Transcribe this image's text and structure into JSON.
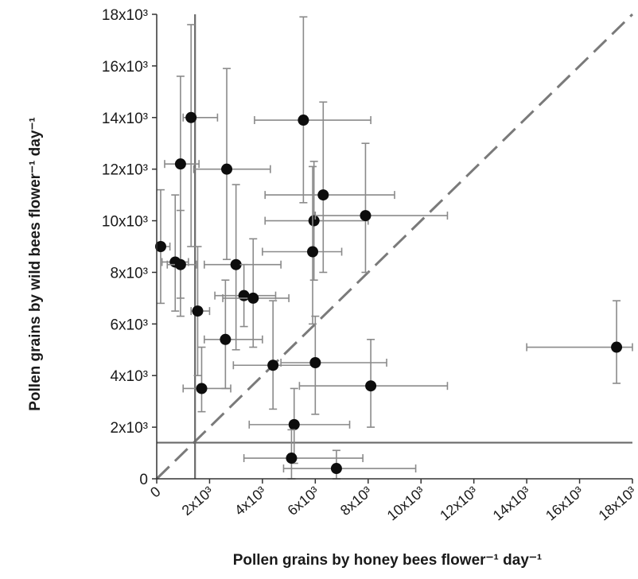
{
  "chart_data": {
    "type": "scatter",
    "xlabel": "Pollen grains by honey bees flower⁻¹ day⁻¹",
    "ylabel": "Pollen grains by wild bees flower⁻¹ day⁻¹",
    "xlim": [
      0,
      18000
    ],
    "ylim": [
      0,
      18000
    ],
    "x_ticks": [
      {
        "value": 0,
        "label": "0"
      },
      {
        "value": 2000,
        "label": "2x10³"
      },
      {
        "value": 4000,
        "label": "4x10³"
      },
      {
        "value": 6000,
        "label": "6x10³"
      },
      {
        "value": 8000,
        "label": "8x10³"
      },
      {
        "value": 10000,
        "label": "10x10³"
      },
      {
        "value": 12000,
        "label": "12x10³"
      },
      {
        "value": 14000,
        "label": "14x10³"
      },
      {
        "value": 16000,
        "label": "16x10³"
      },
      {
        "value": 18000,
        "label": "18x10³"
      }
    ],
    "y_ticks": [
      {
        "value": 0,
        "label": "0"
      },
      {
        "value": 2000,
        "label": "2x10³"
      },
      {
        "value": 4000,
        "label": "4x10³"
      },
      {
        "value": 6000,
        "label": "6x10³"
      },
      {
        "value": 8000,
        "label": "8x10³"
      },
      {
        "value": 10000,
        "label": "10x10³"
      },
      {
        "value": 12000,
        "label": "12x10³"
      },
      {
        "value": 14000,
        "label": "14x10³"
      },
      {
        "value": 16000,
        "label": "16x10³"
      },
      {
        "value": 18000,
        "label": "18x10³"
      }
    ],
    "grid": false,
    "reference_lines": {
      "identity_line": true,
      "vertical_x": 1450,
      "horizontal_y": 1400
    },
    "points": [
      {
        "x": 1300,
        "y": 14000,
        "x_err": [
          1000,
          2300
        ],
        "y_err": [
          9000,
          17600
        ]
      },
      {
        "x": 900,
        "y": 12200,
        "x_err": [
          300,
          1600
        ],
        "y_err": [
          7000,
          15600
        ]
      },
      {
        "x": 150,
        "y": 9000,
        "x_err": [
          0,
          500
        ],
        "y_err": [
          6800,
          11200
        ]
      },
      {
        "x": 700,
        "y": 8400,
        "x_err": [
          200,
          1200
        ],
        "y_err": [
          6500,
          11000
        ]
      },
      {
        "x": 900,
        "y": 8300,
        "x_err": [
          400,
          1500
        ],
        "y_err": [
          6300,
          10400
        ]
      },
      {
        "x": 1550,
        "y": 6500,
        "x_err": [
          1300,
          2000
        ],
        "y_err": [
          4000,
          9000
        ]
      },
      {
        "x": 1700,
        "y": 3500,
        "x_err": [
          1000,
          2800
        ],
        "y_err": [
          2600,
          5100
        ]
      },
      {
        "x": 2650,
        "y": 12000,
        "x_err": [
          1400,
          4300
        ],
        "y_err": [
          8500,
          15900
        ]
      },
      {
        "x": 3000,
        "y": 8300,
        "x_err": [
          1800,
          4700
        ],
        "y_err": [
          5000,
          11400
        ]
      },
      {
        "x": 2600,
        "y": 5400,
        "x_err": [
          1800,
          4000
        ],
        "y_err": [
          3500,
          7700
        ]
      },
      {
        "x": 3300,
        "y": 7100,
        "x_err": [
          2200,
          4500
        ],
        "y_err": [
          5900,
          8300
        ]
      },
      {
        "x": 3650,
        "y": 7000,
        "x_err": [
          2500,
          5000
        ],
        "y_err": [
          5100,
          9300
        ]
      },
      {
        "x": 4400,
        "y": 4400,
        "x_err": [
          2900,
          6000
        ],
        "y_err": [
          2700,
          6900
        ]
      },
      {
        "x": 5550,
        "y": 13900,
        "x_err": [
          3700,
          8100
        ],
        "y_err": [
          10700,
          17900
        ]
      },
      {
        "x": 6300,
        "y": 11000,
        "x_err": [
          4100,
          9000
        ],
        "y_err": [
          8000,
          14600
        ]
      },
      {
        "x": 5950,
        "y": 10000,
        "x_err": [
          4100,
          8000
        ],
        "y_err": [
          7700,
          12300
        ]
      },
      {
        "x": 5900,
        "y": 8800,
        "x_err": [
          4000,
          7000
        ],
        "y_err": [
          6000,
          12100
        ]
      },
      {
        "x": 6000,
        "y": 4500,
        "x_err": [
          4700,
          8700
        ],
        "y_err": [
          2500,
          6300
        ]
      },
      {
        "x": 7900,
        "y": 10200,
        "x_err": [
          6000,
          11000
        ],
        "y_err": [
          8000,
          13000
        ]
      },
      {
        "x": 8100,
        "y": 3600,
        "x_err": [
          5400,
          11000
        ],
        "y_err": [
          2000,
          5400
        ]
      },
      {
        "x": 5200,
        "y": 2100,
        "x_err": [
          3500,
          7300
        ],
        "y_err": [
          600,
          3500
        ]
      },
      {
        "x": 5100,
        "y": 800,
        "x_err": [
          3300,
          7800
        ],
        "y_err": [
          0,
          1900
        ]
      },
      {
        "x": 6800,
        "y": 400,
        "x_err": [
          4800,
          9800
        ],
        "y_err": [
          0,
          1100
        ]
      },
      {
        "x": 17400,
        "y": 5100,
        "x_err": [
          14000,
          18000
        ],
        "y_err": [
          3700,
          6900
        ]
      }
    ]
  }
}
